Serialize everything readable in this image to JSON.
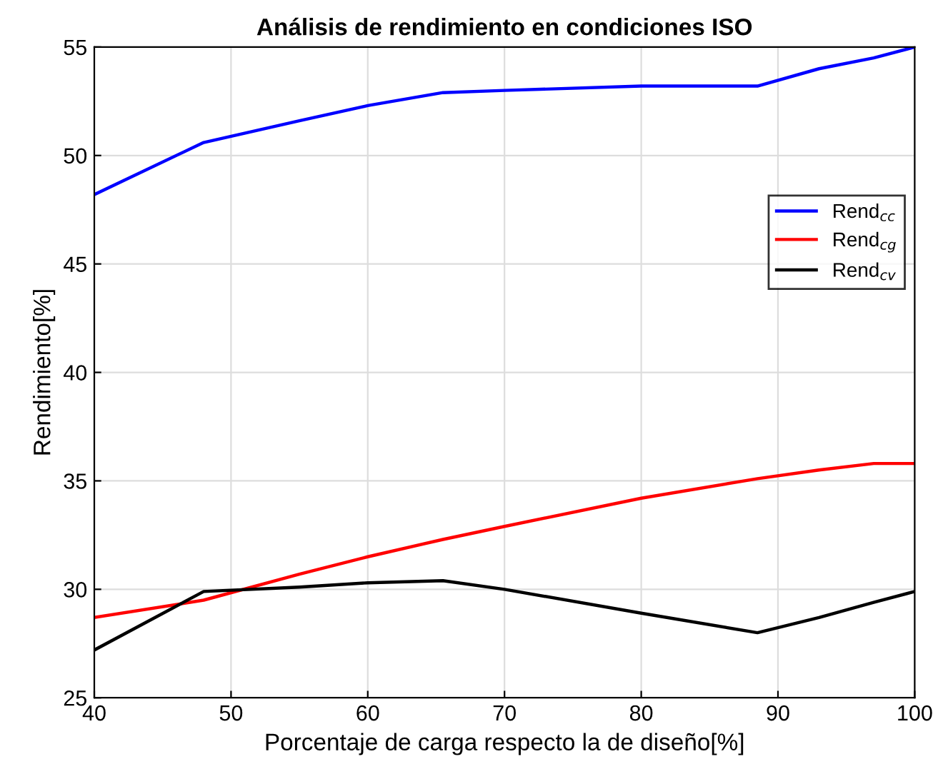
{
  "chart_data": {
    "type": "line",
    "title": "Análisis de rendimiento en condiciones ISO",
    "xlabel": "Porcentaje de carga respecto la de diseño[%]",
    "ylabel": "Rendimiento[%]",
    "x": [
      40,
      48,
      55,
      60,
      65.5,
      70,
      80,
      88.5,
      93,
      97,
      100
    ],
    "series": [
      {
        "name": "Rend$_{cc}$",
        "color": "#0000ff",
        "values": [
          48.2,
          50.6,
          51.6,
          52.3,
          52.9,
          53.0,
          53.2,
          53.2,
          54.0,
          54.5,
          55.0
        ]
      },
      {
        "name": "Rend$_{cg}$",
        "color": "#ff0000",
        "values": [
          28.7,
          29.5,
          30.7,
          31.5,
          32.3,
          32.9,
          34.2,
          35.1,
          35.5,
          35.8,
          35.8
        ]
      },
      {
        "name": "Rend$_{cv}$",
        "color": "#000000",
        "values": [
          27.2,
          29.9,
          30.1,
          30.3,
          30.4,
          30.0,
          28.9,
          28.0,
          28.7,
          29.4,
          29.9
        ]
      }
    ],
    "xlim": [
      40,
      100
    ],
    "xticks": [
      40,
      50,
      60,
      70,
      80,
      90,
      100
    ],
    "ylim": [
      25,
      55
    ],
    "yticks": [
      25,
      30,
      35,
      40,
      45,
      50,
      55
    ],
    "grid": true,
    "legend": "right",
    "marker": "none",
    "line_style": "solid"
  }
}
